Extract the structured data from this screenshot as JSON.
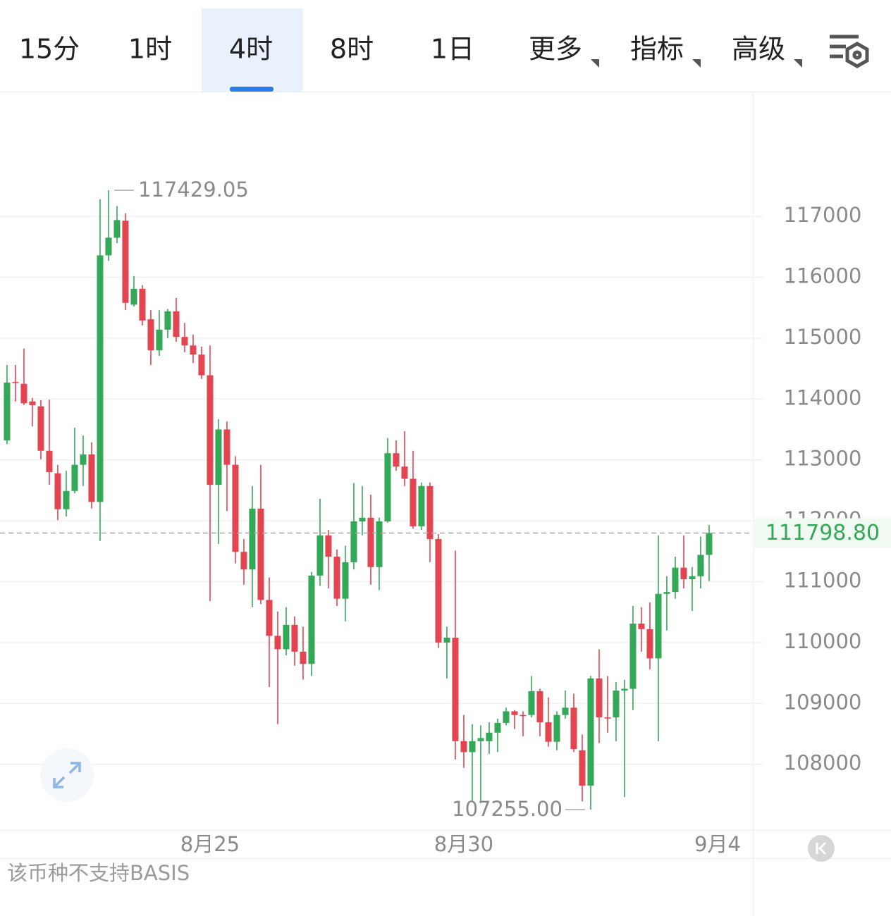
{
  "tabs": [
    "15分",
    "1时",
    "4时",
    "8时",
    "1日"
  ],
  "menus": [
    "更多",
    "指标",
    "高级"
  ],
  "active_tab": 2,
  "chart_data": {
    "type": "candlestick",
    "open": [
      113320,
      114280,
      114250,
      113960,
      113880,
      113150,
      112780,
      112190,
      112490,
      112920,
      113090,
      112310,
      116360,
      116650,
      116930,
      115550,
      115810,
      115310,
      114800,
      115140,
      115440,
      115020,
      114880,
      114730,
      114390,
      112590,
      113500,
      112920,
      111490,
      111200,
      112200,
      110700,
      110110,
      109890,
      110290,
      109850,
      109650,
      111100,
      111760,
      111410,
      110720,
      111320,
      111990,
      112050,
      111240,
      111990,
      113110,
      112890,
      112690,
      111910,
      112570,
      111700,
      110000,
      110080,
      108380,
      108200,
      108380,
      108380,
      108520,
      108680,
      108870,
      108810,
      108810,
      109200,
      108690,
      108370,
      108810,
      108930,
      108230,
      107650,
      109410,
      108770,
      108770,
      109210,
      109240,
      110310,
      110220,
      109740,
      110800,
      110830,
      111230,
      111040,
      111090,
      111440
    ],
    "high": [
      114560,
      114560,
      114830,
      114020,
      113980,
      113990,
      112920,
      112820,
      113530,
      113400,
      113290,
      117280,
      117429.05,
      117170,
      117050,
      116020,
      115870,
      115460,
      115460,
      115480,
      115660,
      115250,
      115060,
      114860,
      114880,
      113670,
      113630,
      113060,
      111700,
      112570,
      112920,
      111070,
      110510,
      110580,
      110430,
      110260,
      111160,
      112360,
      111850,
      111530,
      111590,
      112620,
      112570,
      112430,
      112050,
      113360,
      113320,
      113470,
      113150,
      112630,
      112630,
      111780,
      110260,
      111510,
      108810,
      108660,
      108640,
      108690,
      108750,
      108930,
      108890,
      108870,
      109450,
      109240,
      109100,
      108870,
      109210,
      109160,
      108490,
      109450,
      109890,
      109450,
      109350,
      109390,
      110600,
      110580,
      110660,
      111760,
      111090,
      111410,
      111760,
      111240,
      111740,
      111930
    ],
    "low": [
      113260,
      113960,
      113900,
      113550,
      113010,
      112590,
      112010,
      112070,
      112450,
      112570,
      112200,
      111670,
      116270,
      116560,
      115460,
      115520,
      115210,
      114560,
      114710,
      115000,
      114940,
      114770,
      114590,
      114330,
      110680,
      111620,
      112160,
      111300,
      110950,
      110580,
      110630,
      109270,
      108660,
      109790,
      109620,
      109390,
      109450,
      110930,
      110890,
      110600,
      110350,
      111200,
      111760,
      110950,
      110860,
      111970,
      112820,
      112570,
      111870,
      111850,
      111320,
      109910,
      109410,
      108080,
      107940,
      107390,
      107360,
      108170,
      108200,
      108640,
      108580,
      108460,
      108770,
      108460,
      108290,
      108230,
      108750,
      108200,
      107390,
      107255,
      108350,
      108520,
      108380,
      107460,
      108890,
      109850,
      109560,
      108380,
      110200,
      110720,
      110890,
      110520,
      110890,
      111010
    ],
    "close": [
      114270,
      114270,
      113930,
      113900,
      113150,
      112800,
      112190,
      112490,
      112920,
      113090,
      112310,
      116360,
      116650,
      116940,
      115580,
      115810,
      115290,
      114800,
      115140,
      115440,
      115020,
      114880,
      114730,
      114390,
      112590,
      113500,
      112920,
      111490,
      111200,
      112200,
      110700,
      110110,
      109890,
      110290,
      109850,
      109650,
      111100,
      111760,
      111410,
      110720,
      111320,
      111990,
      112050,
      111240,
      111990,
      113110,
      112890,
      112690,
      111910,
      112570,
      111700,
      110000,
      110080,
      108380,
      108200,
      108380,
      108430,
      108520,
      108680,
      108870,
      108810,
      108800,
      109200,
      108690,
      108370,
      108810,
      108930,
      108250,
      107650,
      109410,
      108770,
      108760,
      109210,
      109240,
      110310,
      110220,
      109740,
      110800,
      110830,
      111230,
      111040,
      111090,
      111440,
      111798.8
    ],
    "extreme_labels": {
      "high": "117429.05",
      "low": "107255.00",
      "last": "111798.80"
    },
    "up_color": "#33a856",
    "down_color": "#e34450",
    "ylim": [
      106920,
      119050
    ],
    "yticks": [
      108000,
      109000,
      110000,
      111000,
      112000,
      113000,
      114000,
      115000,
      116000,
      117000
    ],
    "xlim": [
      -0.83,
      88.17
    ],
    "xticks": [
      {
        "value": 24,
        "label": "8月25"
      },
      {
        "value": 54,
        "label": "8月30"
      },
      {
        "value": 84,
        "label": "9月4"
      }
    ],
    "grid": true
  },
  "footer": "该币种不支持BASIS"
}
